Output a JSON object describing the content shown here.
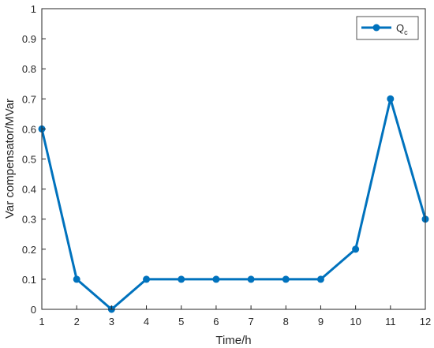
{
  "chart_data": {
    "type": "line",
    "xlabel": "Time/h",
    "ylabel": "Var compensator/MVar",
    "xlim": [
      1,
      12
    ],
    "ylim": [
      0,
      1
    ],
    "xticks": [
      1,
      2,
      3,
      4,
      5,
      6,
      7,
      8,
      9,
      10,
      11,
      12
    ],
    "yticks": [
      0,
      0.1,
      0.2,
      0.3,
      0.4,
      0.5,
      0.6,
      0.7,
      0.8,
      0.9,
      1
    ],
    "grid": false,
    "legend_position": "top-right",
    "series": [
      {
        "name": "Q",
        "name_subscript": "c",
        "color": "#0072BD",
        "marker": "circle",
        "x": [
          1,
          2,
          3,
          4,
          5,
          6,
          7,
          8,
          9,
          10,
          11,
          12
        ],
        "y": [
          0.6,
          0.1,
          0.0,
          0.1,
          0.1,
          0.1,
          0.1,
          0.1,
          0.1,
          0.2,
          0.7,
          0.3
        ]
      }
    ]
  }
}
